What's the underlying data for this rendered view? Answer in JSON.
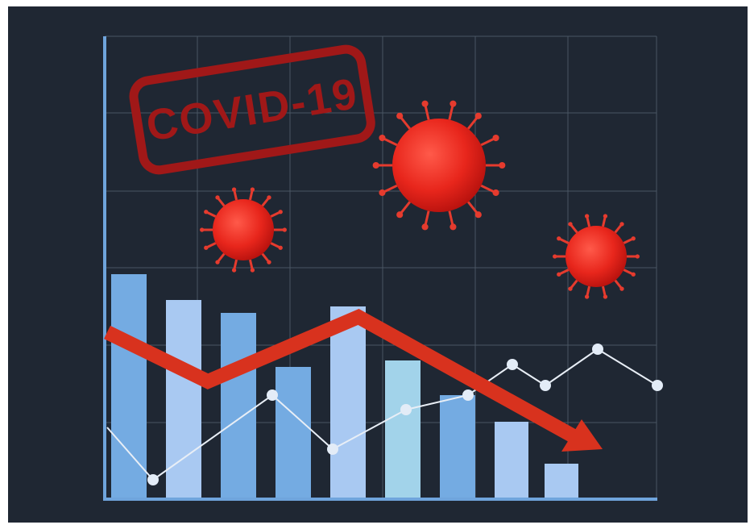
{
  "stamp": {
    "text": "COVID-19"
  }
}
